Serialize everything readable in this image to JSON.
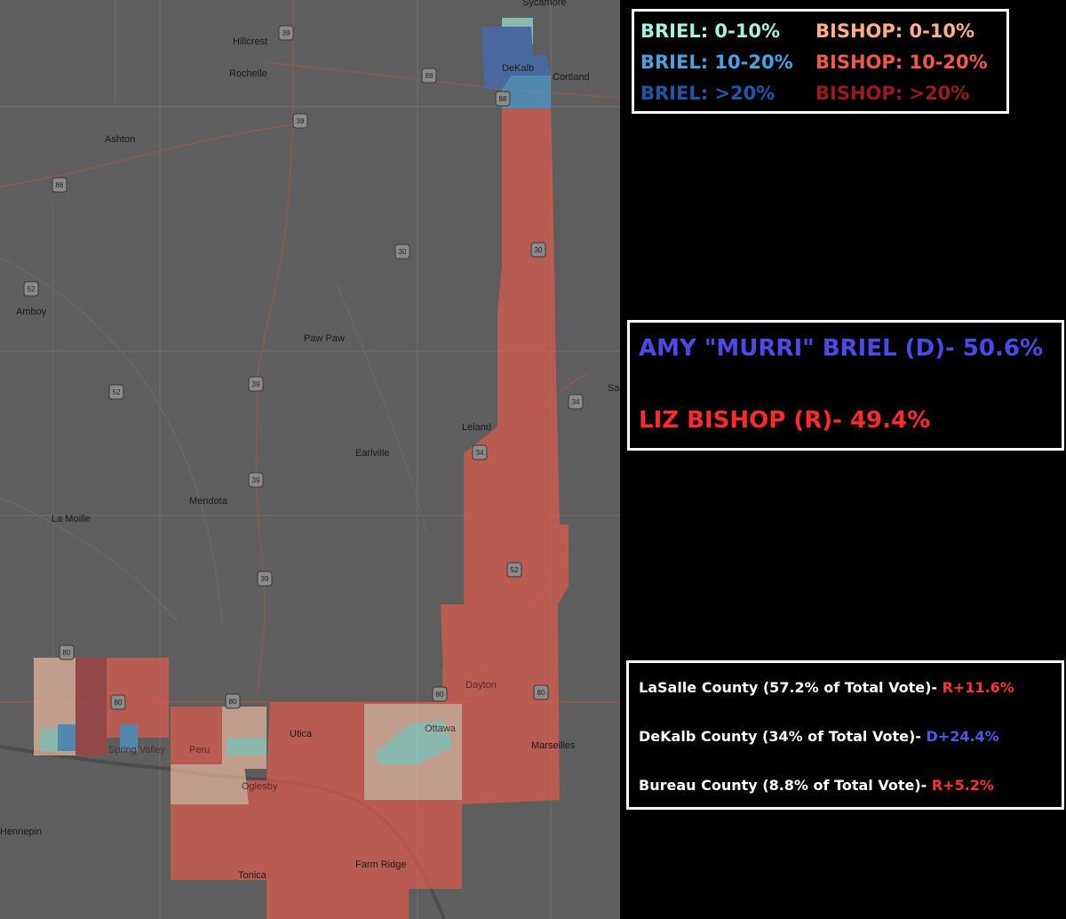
{
  "legend": {
    "items": [
      {
        "label": "BRIEL: 0-10%",
        "color": "#a8f0e0"
      },
      {
        "label": "BRIEL: 10-20%",
        "color": "#4aa3e0"
      },
      {
        "label": "BRIEL: >20%",
        "color": "#1f57a8"
      },
      {
        "label": "BISHOP: 0-10%",
        "color": "#ffb08a"
      },
      {
        "label": "BISHOP: 10-20%",
        "color": "#f05a4a"
      },
      {
        "label": "BISHOP: >20%",
        "color": "#9c1a1a"
      }
    ]
  },
  "results": {
    "dem": {
      "text": "AMY \"MURRI\" BRIEL (D)- 50.6%",
      "color": "#4a4ae6"
    },
    "rep": {
      "text": "LIZ BISHOP (R)- 49.4%",
      "color": "#ff2a2a"
    }
  },
  "counties": [
    {
      "text": "LaSalle County (57.2% of Total Vote)- ",
      "margin": "R+11.6%",
      "color": "#ff3333"
    },
    {
      "text": "DeKalb County (34% of Total Vote)- ",
      "margin": "D+24.4%",
      "color": "#5555ee"
    },
    {
      "text": "Bureau County (8.8% of Total Vote)- ",
      "margin": "R+5.2%",
      "color": "#ff3333"
    }
  ],
  "map": {
    "places": [
      "Sycamore",
      "Hillcrest",
      "Rochelle",
      "DeKalb",
      "Cortland",
      "Ashton",
      "Amboy",
      "Paw Paw",
      "Sa",
      "Leland",
      "Earlville",
      "Mendota",
      "La Moille",
      "Dayton",
      "Ottawa",
      "Marseilles",
      "Spring Valley",
      "Peru",
      "Utica",
      "Oglesby",
      "Hennepin",
      "Farm Ridge",
      "Tonica"
    ],
    "shields": [
      "39",
      "88",
      "39",
      "88",
      "88",
      "30",
      "30",
      "52",
      "52",
      "39",
      "34",
      "34",
      "39",
      "39",
      "52",
      "80",
      "80",
      "80",
      "80",
      "80"
    ]
  }
}
